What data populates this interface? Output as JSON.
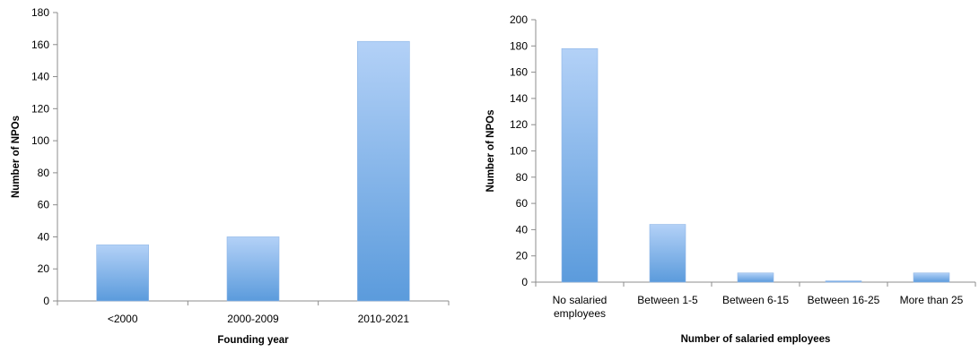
{
  "chart_data": [
    {
      "type": "bar",
      "title": "",
      "xlabel": "Founding year",
      "ylabel": "Number of NPOs",
      "ylim": [
        0,
        180
      ],
      "ytick_step": 20,
      "categories": [
        [
          "<2000"
        ],
        [
          "2000-2009"
        ],
        [
          "2010-2021"
        ]
      ],
      "values": [
        35,
        40,
        162
      ],
      "grid": false,
      "legend": "none",
      "bar_color_top": "#b3d1f7",
      "bar_color_bottom": "#5b9bdc"
    },
    {
      "type": "bar",
      "title": "",
      "xlabel": "Number of salaried employees",
      "ylabel": "Number of NPOs",
      "ylim": [
        0,
        200
      ],
      "ytick_step": 20,
      "categories": [
        [
          "No salaried",
          "employees"
        ],
        [
          "Between 1-5"
        ],
        [
          "Between 6-15"
        ],
        [
          "Between 16-25"
        ],
        [
          "More than 25"
        ]
      ],
      "values": [
        178,
        44,
        7,
        1,
        7
      ],
      "grid": false,
      "legend": "none",
      "bar_color_top": "#b3d1f7",
      "bar_color_bottom": "#5b9bdc"
    }
  ]
}
